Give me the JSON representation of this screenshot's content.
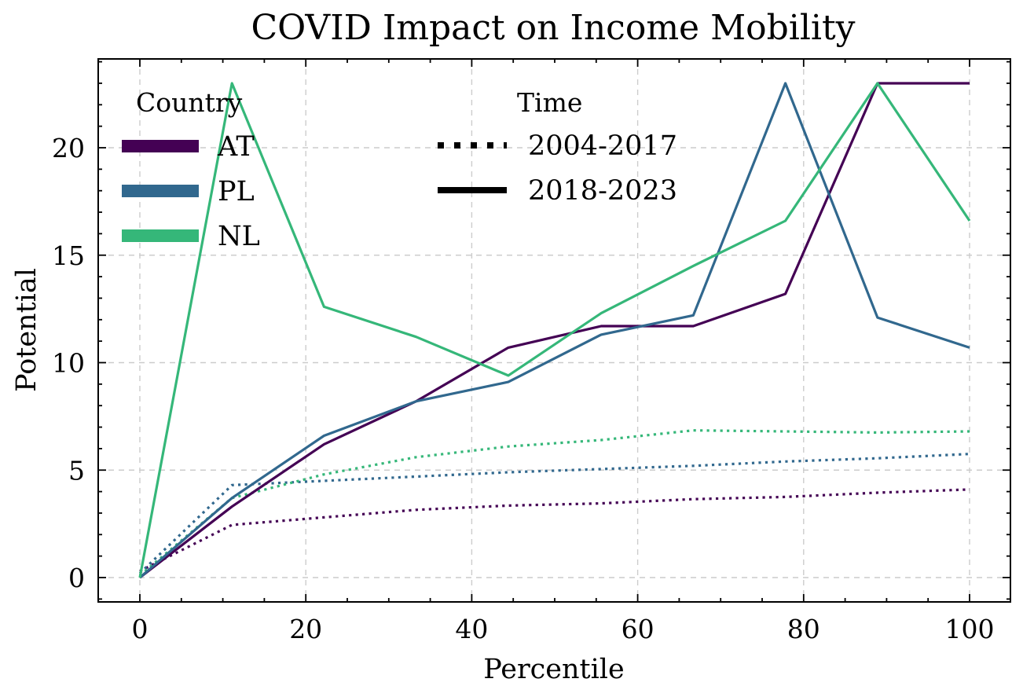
{
  "chart_data": {
    "type": "line",
    "title": "COVID Impact on Income Mobility",
    "xlabel": "Percentile",
    "ylabel": "Potential",
    "xlim": [
      -5,
      105
    ],
    "ylim": [
      -1.1,
      24.2
    ],
    "xticks": [
      0,
      20,
      40,
      60,
      80,
      100
    ],
    "yticks": [
      0,
      5,
      10,
      15,
      20
    ],
    "xtick_labels": [
      "0",
      "20",
      "40",
      "60",
      "80",
      "100"
    ],
    "ytick_labels": [
      "0",
      "5",
      "10",
      "15",
      "20"
    ],
    "grid": true,
    "x": [
      0,
      11.1,
      22.2,
      33.3,
      44.4,
      55.6,
      66.7,
      77.8,
      88.9,
      100
    ],
    "series": [
      {
        "name": "AT",
        "period": "2018-2023",
        "style": "solid",
        "color": "#440154",
        "values": [
          0,
          3.3,
          6.2,
          8.2,
          10.7,
          11.7,
          11.7,
          13.2,
          23.0,
          23.0
        ]
      },
      {
        "name": "PL",
        "period": "2018-2023",
        "style": "solid",
        "color": "#31688e",
        "values": [
          0,
          3.7,
          6.6,
          8.2,
          9.1,
          11.3,
          12.2,
          23.0,
          12.1,
          10.7
        ]
      },
      {
        "name": "NL",
        "period": "2018-2023",
        "style": "solid",
        "color": "#35b779",
        "values": [
          0,
          23.0,
          12.6,
          11.2,
          9.4,
          12.3,
          14.5,
          16.6,
          23.0,
          16.6
        ]
      },
      {
        "name": "AT",
        "period": "2004-2017",
        "style": "dotted",
        "color": "#440154",
        "values": [
          0.3,
          2.45,
          2.8,
          3.15,
          3.35,
          3.45,
          3.65,
          3.75,
          3.95,
          4.1
        ]
      },
      {
        "name": "PL",
        "period": "2004-2017",
        "style": "dotted",
        "color": "#31688e",
        "values": [
          0.2,
          4.3,
          4.5,
          4.7,
          4.9,
          5.05,
          5.2,
          5.4,
          5.55,
          5.75
        ]
      },
      {
        "name": "NL",
        "period": "2004-2017",
        "style": "dotted",
        "color": "#35b779",
        "values": [
          0.1,
          3.7,
          4.8,
          5.6,
          6.1,
          6.4,
          6.85,
          6.8,
          6.75,
          6.8
        ]
      }
    ],
    "legends": [
      {
        "title": "Country",
        "placement": "upper-left",
        "entries": [
          {
            "label": "AT",
            "color": "#440154",
            "style": "solid"
          },
          {
            "label": "PL",
            "color": "#31688e",
            "style": "solid"
          },
          {
            "label": "NL",
            "color": "#35b779",
            "style": "solid"
          }
        ]
      },
      {
        "title": "Time",
        "placement": "upper-center",
        "entries": [
          {
            "label": "2004-2017",
            "color": "#000000",
            "style": "dotted"
          },
          {
            "label": "2018-2023",
            "color": "#000000",
            "style": "solid"
          }
        ]
      }
    ]
  }
}
